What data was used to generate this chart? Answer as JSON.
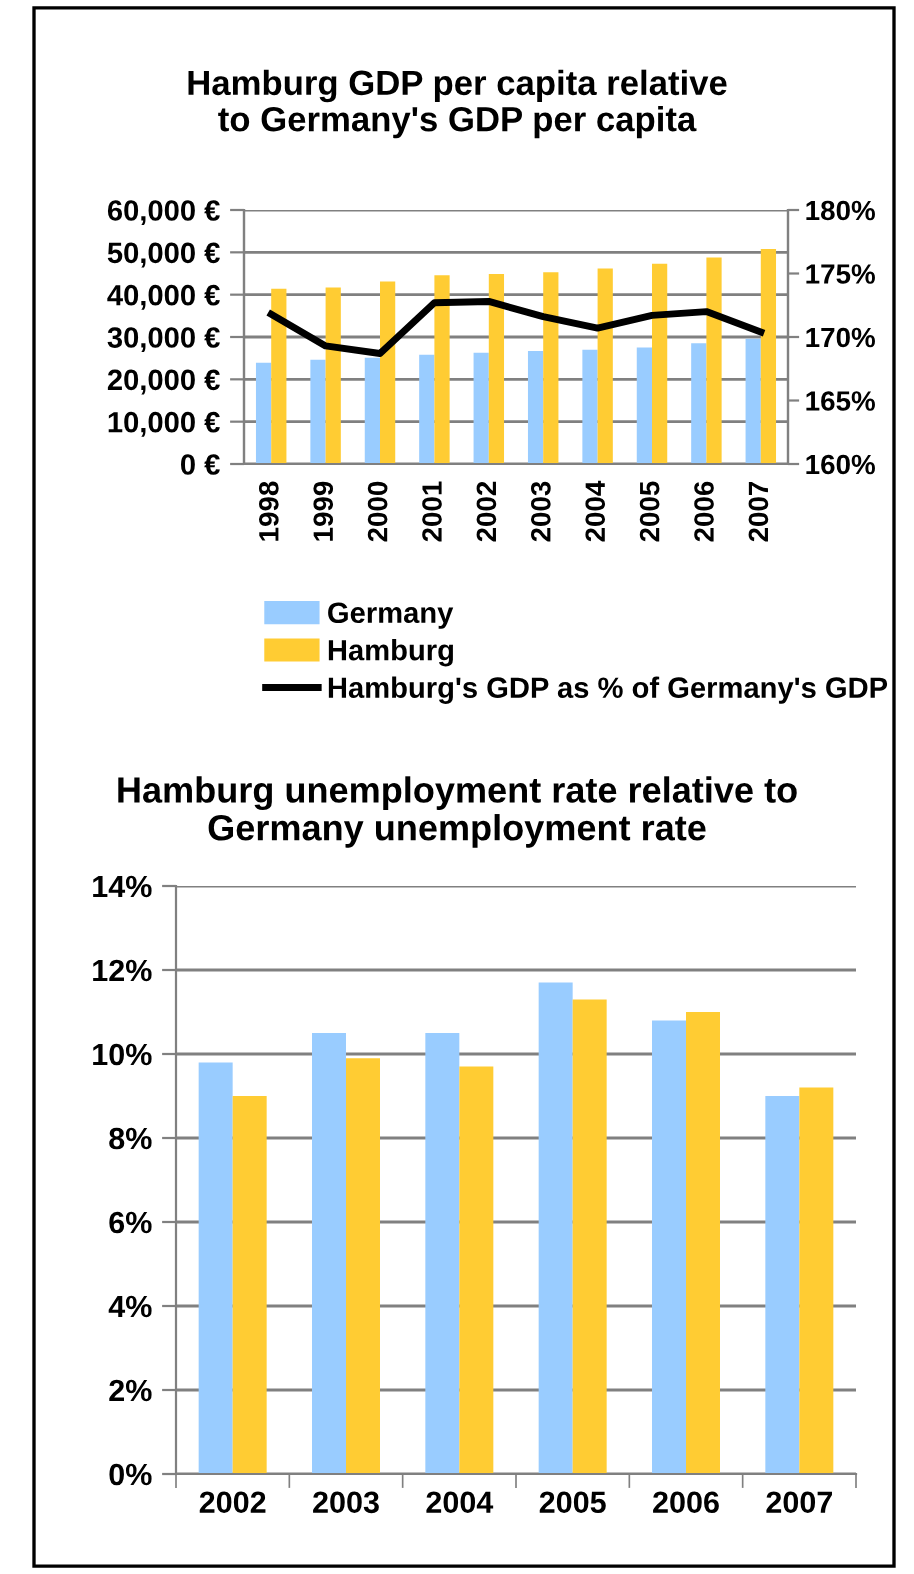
{
  "chart_data": [
    {
      "type": "bar",
      "title": "Hamburg GDP per capita relative\nto Germany's GDP per capita",
      "categories": [
        "1998",
        "1999",
        "2000",
        "2001",
        "2002",
        "2003",
        "2004",
        "2005",
        "2006",
        "2007"
      ],
      "series": [
        {
          "name": "Germany",
          "color": "#99ccff",
          "values": [
            23900,
            24600,
            25100,
            25800,
            26300,
            26700,
            27000,
            27500,
            28500,
            29600
          ]
        },
        {
          "name": "Hamburg",
          "color": "#ffcc33",
          "values": [
            41400,
            41700,
            43100,
            44600,
            44900,
            45300,
            46200,
            47300,
            48800,
            50800
          ]
        },
        {
          "name": "Hamburg's GDP as % of Germany's GDP",
          "type": "line",
          "axis": "y2",
          "color": "#000000",
          "values": [
            171.8,
            169.3,
            168.7,
            172.7,
            172.8,
            171.6,
            170.7,
            171.7,
            172.0,
            170.4
          ]
        }
      ],
      "ylim": [
        0,
        60000
      ],
      "yticks": [
        {
          "value": 0,
          "label": "0 €"
        },
        {
          "value": 10000,
          "label": "10,000 €"
        },
        {
          "value": 20000,
          "label": "20,000 €"
        },
        {
          "value": 30000,
          "label": "30,000 €"
        },
        {
          "value": 40000,
          "label": "40,000 €"
        },
        {
          "value": 50000,
          "label": "50,000 €"
        },
        {
          "value": 60000,
          "label": "60,000 €"
        }
      ],
      "y2lim": [
        160,
        180
      ],
      "y2ticks": [
        {
          "value": 160,
          "label": "160%"
        },
        {
          "value": 165,
          "label": "165%"
        },
        {
          "value": 170,
          "label": "170%"
        },
        {
          "value": 175,
          "label": "175%"
        },
        {
          "value": 180,
          "label": "180%"
        }
      ],
      "grid": "y",
      "legend": "bottom",
      "marker": "none",
      "line_style": "solid"
    },
    {
      "type": "bar",
      "title": "Hamburg unemployment rate relative to\nGermany unemployment rate",
      "categories": [
        "2002",
        "2003",
        "2004",
        "2005",
        "2006",
        "2007"
      ],
      "series": [
        {
          "color": "#99ccff",
          "values": [
            9.8,
            10.5,
            10.5,
            11.7,
            10.8,
            9.0
          ]
        },
        {
          "color": "#ffcc33",
          "values": [
            9.0,
            9.9,
            9.7,
            11.3,
            11.0,
            9.2
          ]
        }
      ],
      "ylim": [
        0,
        14
      ],
      "yticks": [
        {
          "value": 0,
          "label": "0%"
        },
        {
          "value": 2,
          "label": "2%"
        },
        {
          "value": 4,
          "label": "4%"
        },
        {
          "value": 6,
          "label": "6%"
        },
        {
          "value": 8,
          "label": "8%"
        },
        {
          "value": 10,
          "label": "10%"
        },
        {
          "value": 12,
          "label": "12%"
        },
        {
          "value": 14,
          "label": "14%"
        }
      ],
      "grid": "y",
      "legend": false
    }
  ]
}
